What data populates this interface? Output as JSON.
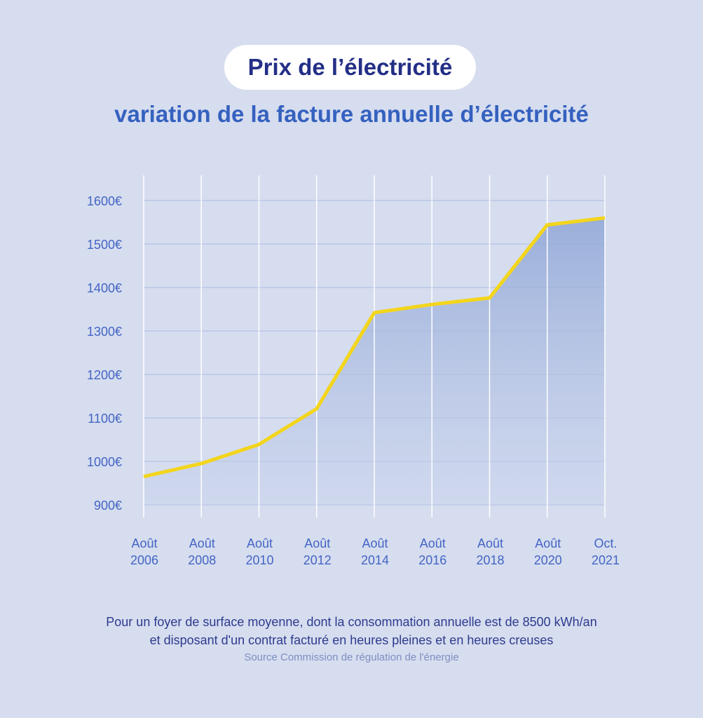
{
  "header": {
    "title": "Prix de l’électricité",
    "subtitle": "variation de la facture annuelle d’électricité"
  },
  "chart_data": {
    "type": "area",
    "title": "Prix de l’électricité",
    "subtitle": "variation de la facture annuelle d’électricité",
    "categories": [
      [
        "Août",
        "2006"
      ],
      [
        "Août",
        "2008"
      ],
      [
        "Août",
        "2010"
      ],
      [
        "Août",
        "2012"
      ],
      [
        "Août",
        "2014"
      ],
      [
        "Août",
        "2016"
      ],
      [
        "Août",
        "2018"
      ],
      [
        "Août",
        "2020"
      ],
      [
        "Oct.",
        "2021"
      ]
    ],
    "values": [
      965,
      995,
      1039,
      1121,
      1342,
      1361,
      1376,
      1544,
      1560
    ],
    "y_ticks": [
      "900€",
      "1000€",
      "1100€",
      "1200€",
      "1300€",
      "1400€",
      "1500€",
      "1600€"
    ],
    "ylim": [
      900,
      1600
    ],
    "grid": true,
    "line_color": "#f3d51c",
    "fill_color": "#8fa6d6"
  },
  "footer": {
    "line1": "Pour un foyer de surface moyenne, dont la consommation annuelle est de 8500 kWh/an",
    "line2": "et disposant d'un contrat facturé en heures pleines et en heures creuses",
    "source": "Source Commission de régulation de l'énergie"
  }
}
